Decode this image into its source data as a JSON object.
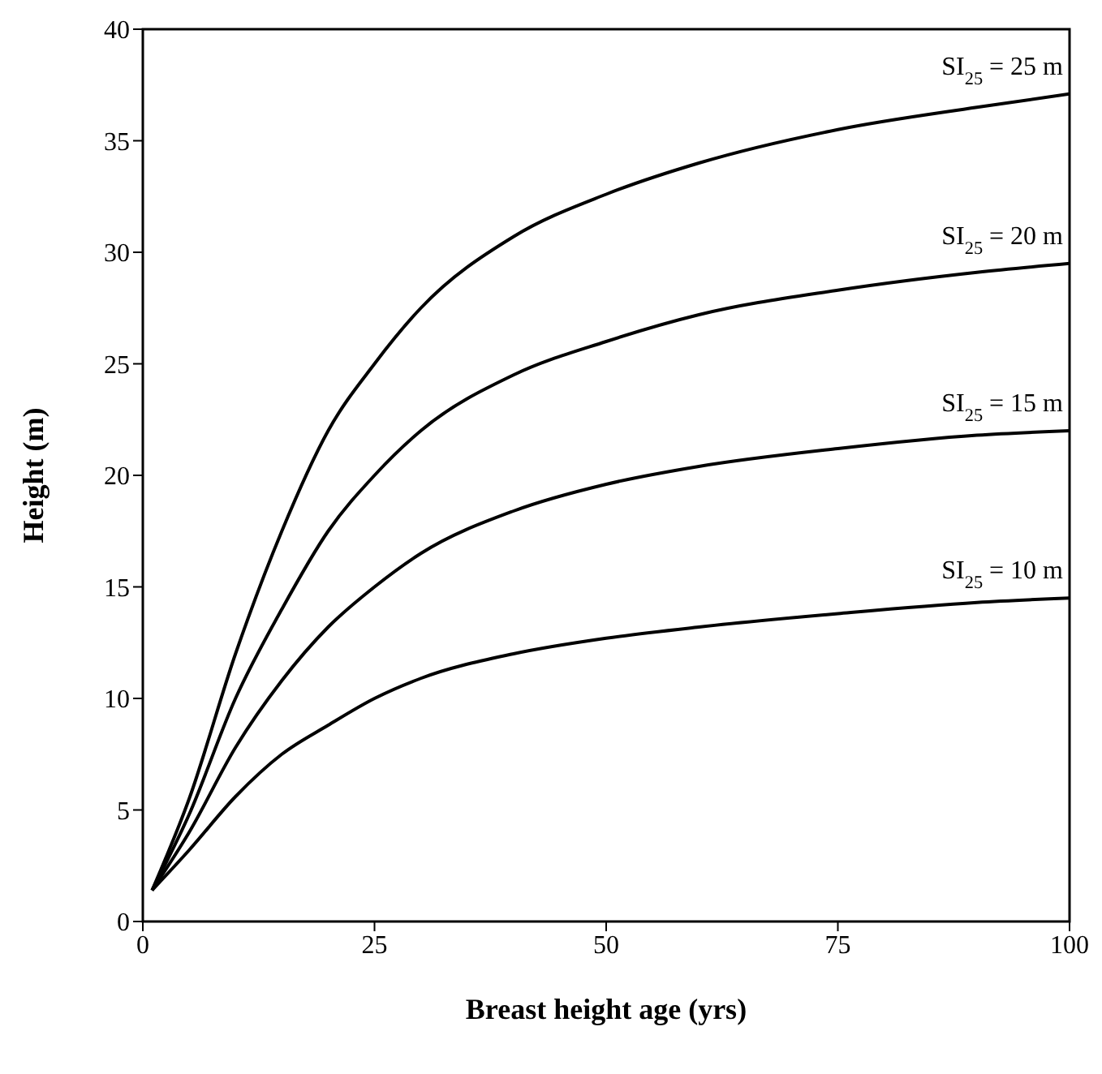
{
  "chart_data": {
    "type": "line",
    "xlabel": "Breast height age (yrs)",
    "ylabel": "Height (m)",
    "xlim": [
      0,
      100
    ],
    "xticks": [
      0,
      25,
      50,
      75,
      100
    ],
    "ylim": [
      0,
      40
    ],
    "yticks": [
      0,
      5,
      10,
      15,
      20,
      25,
      30,
      35,
      40
    ],
    "grid": false,
    "legend": false,
    "marker": "none",
    "line_style": "solid",
    "x": [
      1,
      5,
      10,
      15,
      20,
      25,
      30,
      40,
      50,
      60,
      75,
      90,
      100
    ],
    "series": [
      {
        "name": "SI$_{25}$ = 25 m",
        "color": "#000000",
        "values": [
          1.4,
          5.5,
          12,
          17.5,
          22,
          25,
          27.5,
          30.7,
          32.6,
          34,
          35.5,
          36.5,
          37.1
        ]
      },
      {
        "name": "SI$_{25}$ = 20 m",
        "color": "#000000",
        "values": [
          1.4,
          4.8,
          10,
          14,
          17.5,
          20,
          22,
          24.5,
          26,
          27.2,
          28.3,
          29.1,
          29.5
        ]
      },
      {
        "name": "SI$_{25}$ = 15 m",
        "color": "#000000",
        "values": [
          1.4,
          4,
          7.8,
          10.8,
          13.2,
          15,
          16.5,
          18.4,
          19.6,
          20.4,
          21.2,
          21.8,
          22
        ]
      },
      {
        "name": "SI$_{25}$ = 10 m",
        "color": "#000000",
        "values": [
          1.4,
          3.2,
          5.6,
          7.5,
          8.8,
          10,
          10.9,
          12,
          12.7,
          13.2,
          13.8,
          14.3,
          14.5
        ]
      }
    ]
  }
}
